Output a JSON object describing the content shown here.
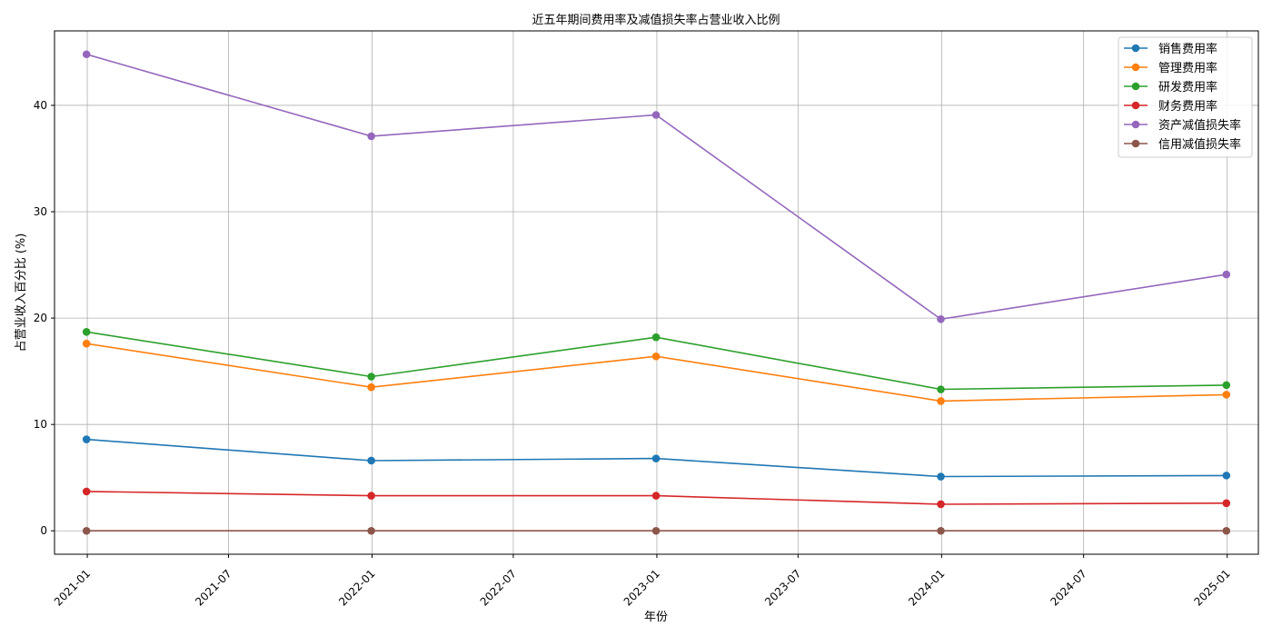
{
  "chart_data": {
    "type": "line",
    "title": "近五年期间费用率及减值损失率占营业收入比例",
    "xlabel": "年份",
    "ylabel": "占营业收入百分比 (%)",
    "x": [
      "2020-12-31",
      "2021-12-31",
      "2022-12-31",
      "2023-12-31",
      "2024-12-31"
    ],
    "xlim": [
      "2020-11-20",
      "2025-02-10"
    ],
    "ylim": [
      -2.2,
      47
    ],
    "xticks": [
      "2021-01",
      "2021-07",
      "2022-01",
      "2022-07",
      "2023-01",
      "2023-07",
      "2024-01",
      "2024-07",
      "2025-01"
    ],
    "yticks": [
      0,
      10,
      20,
      30,
      40
    ],
    "grid": true,
    "legend_position": "top-right",
    "series": [
      {
        "name": "销售费用率",
        "color": "#1f77b4",
        "values": [
          8.6,
          6.6,
          6.8,
          5.1,
          5.2
        ]
      },
      {
        "name": "管理费用率",
        "color": "#ff7f0e",
        "values": [
          17.6,
          13.5,
          16.4,
          12.2,
          12.8
        ]
      },
      {
        "name": "研发费用率",
        "color": "#2ca02c",
        "values": [
          18.7,
          14.5,
          18.2,
          13.3,
          13.7
        ]
      },
      {
        "name": "财务费用率",
        "color": "#d62728",
        "values": [
          3.7,
          3.3,
          3.3,
          2.5,
          2.6
        ]
      },
      {
        "name": "资产减值损失率",
        "color": "#9467bd",
        "values": [
          44.8,
          37.1,
          39.1,
          19.9,
          24.1
        ]
      },
      {
        "name": "信用减值损失率",
        "color": "#8c564b",
        "values": [
          0.0,
          0.0,
          0.0,
          0.0,
          0.0
        ]
      }
    ]
  }
}
